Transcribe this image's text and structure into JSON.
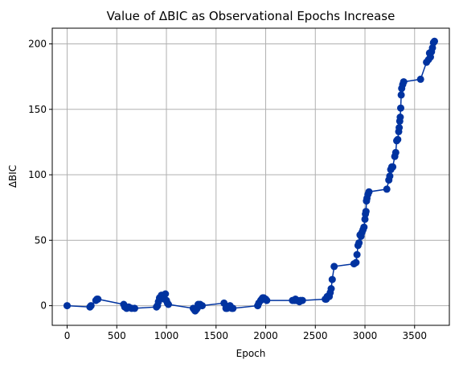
{
  "chart_data": {
    "type": "line",
    "title": "Value of ΔBIC as Observational Epochs Increase",
    "xlabel": "Epoch",
    "ylabel": "ΔBIC",
    "xlim": [
      -150,
      3850
    ],
    "ylim": [
      -15,
      212
    ],
    "xticks": [
      0,
      500,
      1000,
      1500,
      2000,
      2500,
      3000,
      3500
    ],
    "yticks": [
      0,
      50,
      100,
      150,
      200
    ],
    "grid": true,
    "legend": "none",
    "colors": {
      "series": "#0033a0",
      "grid": "#b0b0b0"
    },
    "series": [
      {
        "marker": "circle",
        "points": [
          [
            0,
            0
          ],
          [
            230,
            -1
          ],
          [
            240,
            0
          ],
          [
            290,
            4
          ],
          [
            300,
            5
          ],
          [
            310,
            5
          ],
          [
            570,
            1
          ],
          [
            580,
            -1
          ],
          [
            600,
            -2
          ],
          [
            620,
            -1
          ],
          [
            650,
            -2
          ],
          [
            680,
            -2
          ],
          [
            900,
            -1
          ],
          [
            910,
            0
          ],
          [
            920,
            3
          ],
          [
            930,
            6
          ],
          [
            950,
            8
          ],
          [
            960,
            7
          ],
          [
            970,
            8
          ],
          [
            980,
            5
          ],
          [
            990,
            9
          ],
          [
            1000,
            4
          ],
          [
            1010,
            2
          ],
          [
            1020,
            1
          ],
          [
            1270,
            -2
          ],
          [
            1280,
            -3
          ],
          [
            1290,
            -4
          ],
          [
            1300,
            -3
          ],
          [
            1310,
            -2
          ],
          [
            1320,
            1
          ],
          [
            1340,
            1
          ],
          [
            1360,
            0
          ],
          [
            1580,
            2
          ],
          [
            1600,
            -2
          ],
          [
            1610,
            -2
          ],
          [
            1640,
            0
          ],
          [
            1660,
            -2
          ],
          [
            1670,
            -2
          ],
          [
            1920,
            0
          ],
          [
            1930,
            2
          ],
          [
            1950,
            4
          ],
          [
            1960,
            5
          ],
          [
            1970,
            6
          ],
          [
            1980,
            6
          ],
          [
            2000,
            5
          ],
          [
            2010,
            4
          ],
          [
            2270,
            4
          ],
          [
            2290,
            4
          ],
          [
            2300,
            5
          ],
          [
            2310,
            4
          ],
          [
            2320,
            4
          ],
          [
            2340,
            3
          ],
          [
            2350,
            4
          ],
          [
            2370,
            4
          ],
          [
            2600,
            5
          ],
          [
            2610,
            5
          ],
          [
            2620,
            7
          ],
          [
            2640,
            7
          ],
          [
            2650,
            10
          ],
          [
            2660,
            13
          ],
          [
            2670,
            20
          ],
          [
            2690,
            30
          ],
          [
            2890,
            32
          ],
          [
            2910,
            33
          ],
          [
            2920,
            39
          ],
          [
            2930,
            46
          ],
          [
            2940,
            48
          ],
          [
            2950,
            54
          ],
          [
            2960,
            53
          ],
          [
            2970,
            56
          ],
          [
            2980,
            58
          ],
          [
            2990,
            60
          ],
          [
            3000,
            66
          ],
          [
            3005,
            70
          ],
          [
            3010,
            72
          ],
          [
            3015,
            80
          ],
          [
            3020,
            82
          ],
          [
            3030,
            85
          ],
          [
            3040,
            87
          ],
          [
            3220,
            89
          ],
          [
            3240,
            96
          ],
          [
            3250,
            99
          ],
          [
            3260,
            104
          ],
          [
            3270,
            106
          ],
          [
            3280,
            106
          ],
          [
            3300,
            114
          ],
          [
            3310,
            117
          ],
          [
            3320,
            126
          ],
          [
            3330,
            127
          ],
          [
            3340,
            133
          ],
          [
            3345,
            136
          ],
          [
            3350,
            141
          ],
          [
            3355,
            144
          ],
          [
            3360,
            151
          ],
          [
            3365,
            161
          ],
          [
            3370,
            166
          ],
          [
            3380,
            169
          ],
          [
            3390,
            171
          ],
          [
            3560,
            173
          ],
          [
            3620,
            186
          ],
          [
            3640,
            188
          ],
          [
            3650,
            193
          ],
          [
            3660,
            190
          ],
          [
            3670,
            194
          ],
          [
            3680,
            197
          ],
          [
            3690,
            201
          ],
          [
            3700,
            202
          ]
        ]
      }
    ]
  }
}
